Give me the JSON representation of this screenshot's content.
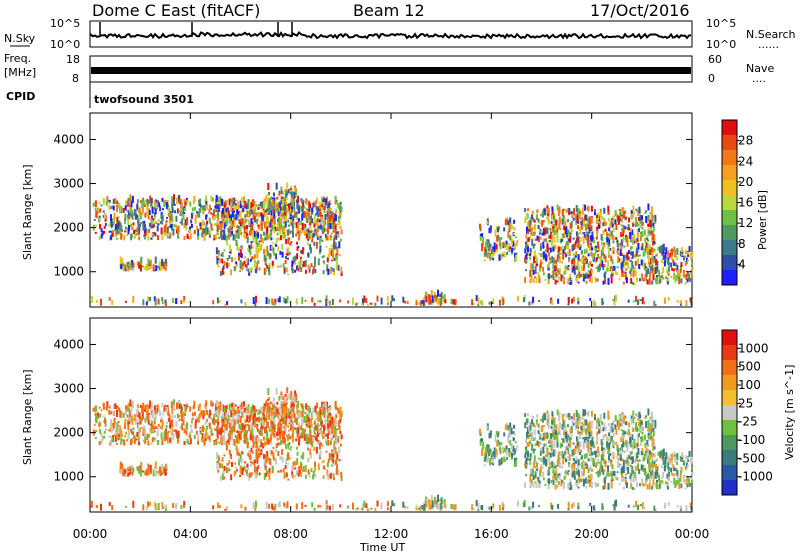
{
  "header": {
    "radar": "Dome C East (fitACF)",
    "beam": "Beam 12",
    "date": "17/Oct/2016"
  },
  "panel_labels": {
    "nsky": "N.Sky",
    "nsearch": "N.Search",
    "freq": "Freq.",
    "freq_unit": "[MHz]",
    "nave": "Nave",
    "cpid": "CPID",
    "cpid_value": "twofsound 3501",
    "dotted": "......",
    "dotted2": "...."
  },
  "noise_axis": {
    "left_top": "10^5",
    "left_bottom": "10^0",
    "right_top": "10^5",
    "right_bottom": "10^0"
  },
  "freq_axis": {
    "left": [
      "18",
      "8"
    ],
    "right": [
      "60",
      "0"
    ]
  },
  "chart_data": [
    {
      "type": "heatmap",
      "name": "power",
      "ylabel": "Slant Range [km]",
      "xlabel": "Time UT",
      "ylim": [
        200,
        4600
      ],
      "y_ticks": [
        "1000",
        "2000",
        "3000",
        "4000"
      ],
      "x_ticks": [
        "00:00",
        "04:00",
        "08:00",
        "12:00",
        "16:00",
        "20:00",
        "00:00"
      ],
      "colorbar": {
        "label": "Power [dB]",
        "ticks": [
          "4",
          "8",
          "12",
          "16",
          "20",
          "24",
          "28"
        ],
        "colors": [
          "#1e1eff",
          "#2f4fa6",
          "#3c7a8c",
          "#4f9a63",
          "#6dbf45",
          "#b8d83c",
          "#f0c020",
          "#f5a020",
          "#f07a18",
          "#e84a14",
          "#e01010"
        ]
      }
    },
    {
      "type": "heatmap",
      "name": "velocity",
      "ylabel": "Slant Range [km]",
      "xlabel": "Time UT",
      "ylim": [
        200,
        4600
      ],
      "y_ticks": [
        "1000",
        "2000",
        "3000",
        "4000"
      ],
      "x_ticks": [
        "00:00",
        "04:00",
        "08:00",
        "12:00",
        "16:00",
        "20:00",
        "00:00"
      ],
      "colorbar": {
        "label": "Velocity [m s^-1]",
        "ticks": [
          "1000",
          "500",
          "100",
          "25",
          "-25",
          "-100",
          "-500",
          "-1000"
        ],
        "colors": [
          "#2030c8",
          "#2c58a8",
          "#3a7a80",
          "#4c9a60",
          "#70c040",
          "#c8c8c8",
          "#f0c030",
          "#f09a20",
          "#f07018",
          "#e83a14",
          "#e01010"
        ]
      }
    }
  ]
}
